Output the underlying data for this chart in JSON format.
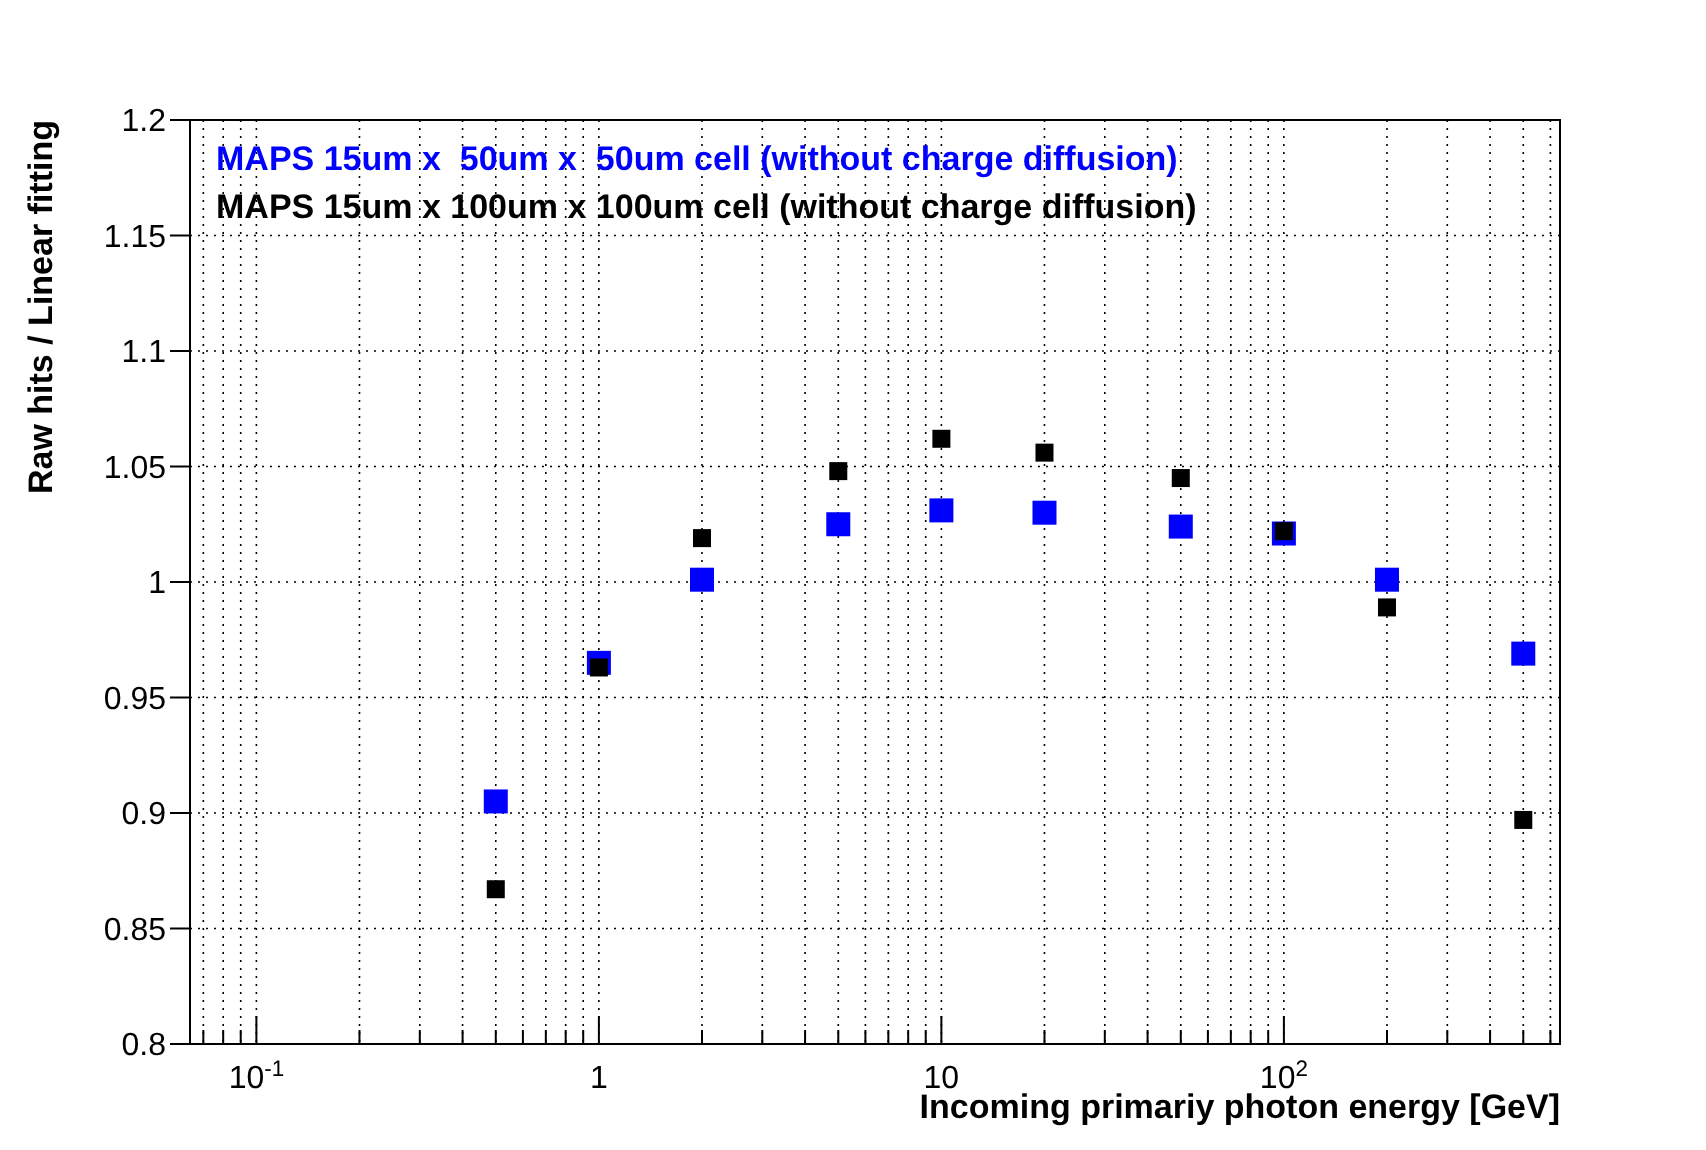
{
  "chart_data": {
    "type": "scatter",
    "xlabel": "Incoming primariy photon energy  [GeV]",
    "ylabel": "Raw hits / Linear fitting",
    "log": "x",
    "grid": true,
    "line_style": "dotted",
    "marker": "square",
    "legend": "top left",
    "x": [
      0.5,
      1,
      2,
      5,
      10,
      20,
      50,
      100,
      200,
      500
    ],
    "series": [
      {
        "name": "MAPS 15um x  50um x  50um cell (without charge diffusion)",
        "color": "#0000ff",
        "values": [
          0.905,
          0.965,
          1.001,
          1.025,
          1.031,
          1.03,
          1.024,
          1.021,
          1.001,
          0.969
        ]
      },
      {
        "name": "MAPS 15um x 100um x 100um cell (without charge diffusion)",
        "color": "#000000",
        "values": [
          0.867,
          0.963,
          1.019,
          1.048,
          1.062,
          1.056,
          1.045,
          1.022,
          0.989,
          0.897
        ]
      }
    ],
    "xlim": [
      0.064,
      640
    ],
    "xticks": [
      {
        "value": 0.07,
        "label": null
      },
      {
        "value": 0.08,
        "label": null
      },
      {
        "value": 0.09,
        "label": null
      },
      {
        "value": 0.1,
        "label": "10$^{-1}$"
      },
      {
        "value": 0.2,
        "label": null
      },
      {
        "value": 0.3,
        "label": null
      },
      {
        "value": 0.4,
        "label": null
      },
      {
        "value": 0.5,
        "label": null
      },
      {
        "value": 0.6,
        "label": null
      },
      {
        "value": 0.7,
        "label": null
      },
      {
        "value": 0.8,
        "label": null
      },
      {
        "value": 0.9,
        "label": null
      },
      1,
      {
        "value": 2,
        "label": null
      },
      {
        "value": 3,
        "label": null
      },
      {
        "value": 4,
        "label": null
      },
      {
        "value": 5,
        "label": null
      },
      {
        "value": 6,
        "label": null
      },
      {
        "value": 7,
        "label": null
      },
      {
        "value": 8,
        "label": null
      },
      {
        "value": 9,
        "label": null
      },
      10,
      {
        "value": 20,
        "label": null
      },
      {
        "value": 30,
        "label": null
      },
      {
        "value": 40,
        "label": null
      },
      {
        "value": 50,
        "label": null
      },
      {
        "value": 60,
        "label": null
      },
      {
        "value": 70,
        "label": null
      },
      {
        "value": 80,
        "label": null
      },
      {
        "value": 90,
        "label": null
      },
      {
        "value": 100,
        "label": "10$^{2}$"
      },
      {
        "value": 200,
        "label": null
      },
      {
        "value": 300,
        "label": null
      },
      {
        "value": 400,
        "label": null
      },
      {
        "value": 500,
        "label": null
      },
      {
        "value": 600,
        "label": null
      }
    ],
    "ylim": [
      0.8,
      1.2
    ],
    "yticks": [
      0.8,
      0.85,
      0.9,
      0.95,
      1,
      1.05,
      1.1,
      1.15,
      1.2
    ]
  }
}
